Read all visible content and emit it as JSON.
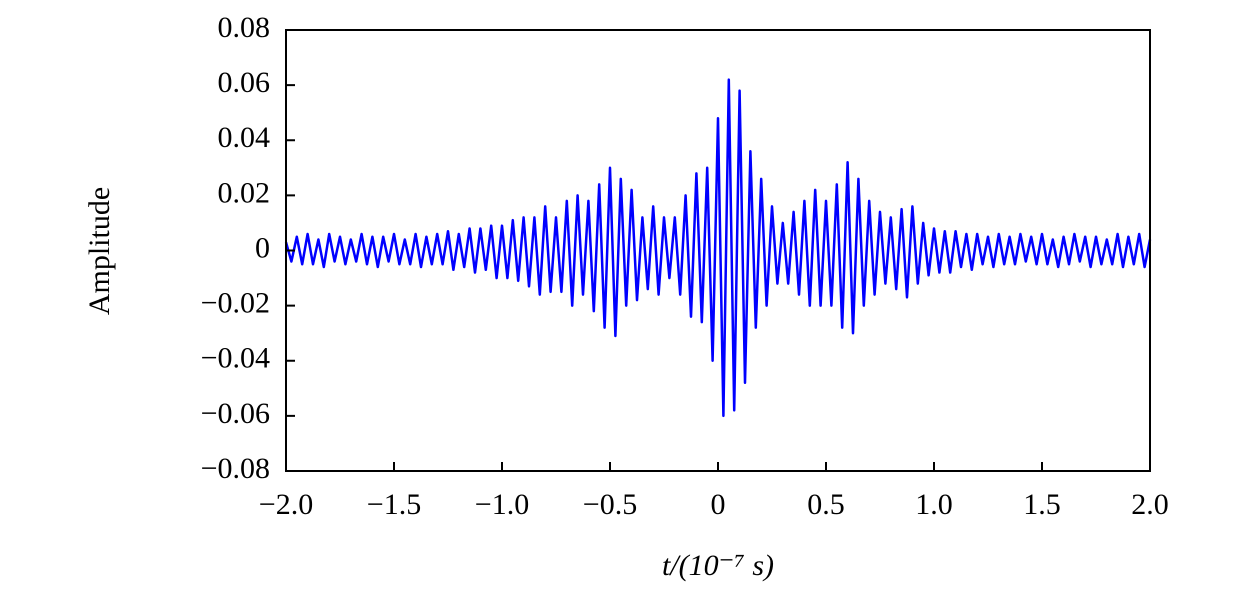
{
  "chart_data": {
    "type": "line",
    "xlabel": "t/(10⁻⁷ s)",
    "ylabel": "Amplitude",
    "x": [
      -2,
      -1.975,
      -1.95,
      -1.925,
      -1.9,
      -1.875,
      -1.85,
      -1.825,
      -1.8,
      -1.775,
      -1.75,
      -1.725,
      -1.7,
      -1.675,
      -1.65,
      -1.625,
      -1.6,
      -1.575,
      -1.55,
      -1.525,
      -1.5,
      -1.475,
      -1.45,
      -1.425,
      -1.4,
      -1.375,
      -1.35,
      -1.325,
      -1.3,
      -1.275,
      -1.25,
      -1.225,
      -1.2,
      -1.175,
      -1.15,
      -1.125,
      -1.1,
      -1.075,
      -1.05,
      -1.025,
      -1,
      -0.975,
      -0.95,
      -0.925,
      -0.9,
      -0.875,
      -0.85,
      -0.825,
      -0.8,
      -0.775,
      -0.75,
      -0.725,
      -0.7,
      -0.675,
      -0.65,
      -0.625,
      -0.6,
      -0.575,
      -0.55,
      -0.525,
      -0.5,
      -0.475,
      -0.45,
      -0.425,
      -0.4,
      -0.375,
      -0.35,
      -0.325,
      -0.3,
      -0.275,
      -0.25,
      -0.225,
      -0.2,
      -0.175,
      -0.15,
      -0.125,
      -0.1,
      -0.075,
      -0.05,
      -0.025,
      0,
      0.025,
      0.05,
      0.075,
      0.1,
      0.125,
      0.15,
      0.175,
      0.2,
      0.225,
      0.25,
      0.275,
      0.3,
      0.325,
      0.35,
      0.375,
      0.4,
      0.425,
      0.45,
      0.475,
      0.5,
      0.525,
      0.55,
      0.575,
      0.6,
      0.625,
      0.65,
      0.675,
      0.7,
      0.725,
      0.75,
      0.775,
      0.8,
      0.825,
      0.85,
      0.875,
      0.9,
      0.925,
      0.95,
      0.975,
      1,
      1.025,
      1.05,
      1.075,
      1.1,
      1.125,
      1.15,
      1.175,
      1.2,
      1.225,
      1.25,
      1.275,
      1.3,
      1.325,
      1.35,
      1.375,
      1.4,
      1.425,
      1.45,
      1.475,
      1.5,
      1.525,
      1.55,
      1.575,
      1.6,
      1.625,
      1.65,
      1.675,
      1.7,
      1.725,
      1.75,
      1.775,
      1.8,
      1.825,
      1.85,
      1.875,
      1.9,
      1.925,
      1.95,
      1.975,
      2
    ],
    "series": [
      {
        "color": "#0000ff",
        "values": [
          0.003,
          -0.004,
          0.005,
          -0.005,
          0.006,
          -0.005,
          0.004,
          -0.006,
          0.006,
          -0.004,
          0.005,
          -0.005,
          0.004,
          -0.004,
          0.006,
          -0.005,
          0.005,
          -0.006,
          0.005,
          -0.004,
          0.006,
          -0.005,
          0.004,
          -0.005,
          0.006,
          -0.006,
          0.005,
          -0.005,
          0.006,
          -0.005,
          0.007,
          -0.007,
          0.006,
          -0.006,
          0.008,
          -0.008,
          0.008,
          -0.007,
          0.009,
          -0.01,
          0.009,
          -0.01,
          0.011,
          -0.011,
          0.012,
          -0.013,
          0.012,
          -0.016,
          0.016,
          -0.015,
          0.012,
          -0.015,
          0.018,
          -0.02,
          0.02,
          -0.016,
          0.018,
          -0.022,
          0.024,
          -0.028,
          0.03,
          -0.031,
          0.026,
          -0.02,
          0.022,
          -0.018,
          0.012,
          -0.014,
          0.016,
          -0.016,
          0.012,
          -0.01,
          0.012,
          -0.016,
          0.02,
          -0.024,
          0.028,
          -0.026,
          0.03,
          -0.04,
          0.048,
          -0.06,
          0.062,
          -0.058,
          0.058,
          -0.048,
          0.036,
          -0.028,
          0.026,
          -0.02,
          0.016,
          -0.012,
          0.01,
          -0.012,
          0.014,
          -0.016,
          0.018,
          -0.02,
          0.022,
          -0.02,
          0.018,
          -0.02,
          0.024,
          -0.028,
          0.032,
          -0.03,
          0.026,
          -0.02,
          0.018,
          -0.016,
          0.014,
          -0.012,
          0.012,
          -0.014,
          0.015,
          -0.017,
          0.016,
          -0.012,
          0.01,
          -0.009,
          0.008,
          -0.008,
          0.007,
          -0.008,
          0.007,
          -0.006,
          0.006,
          -0.007,
          0.006,
          -0.005,
          0.005,
          -0.006,
          0.006,
          -0.005,
          0.005,
          -0.005,
          0.006,
          -0.004,
          0.005,
          -0.005,
          0.006,
          -0.005,
          0.004,
          -0.006,
          0.005,
          -0.005,
          0.006,
          -0.004,
          0.005,
          -0.006,
          0.005,
          -0.005,
          0.004,
          -0.005,
          0.006,
          -0.006,
          0.005,
          -0.005,
          0.006,
          -0.006,
          0.004
        ]
      }
    ],
    "xlim": [
      -2,
      2
    ],
    "xticks": [
      {
        "value": -2,
        "label": "−2.0"
      },
      {
        "value": -1.5,
        "label": "−1.5"
      },
      {
        "value": -1,
        "label": "−1.0"
      },
      {
        "value": -0.5,
        "label": "−0.5"
      },
      0,
      0.5,
      {
        "value": 1,
        "label": "1.0"
      },
      1.5,
      {
        "value": 2,
        "label": "2.0"
      }
    ],
    "ylim": [
      -0.08,
      0.08
    ],
    "yticks": [
      {
        "value": -0.08,
        "label": "−0.08"
      },
      {
        "value": -0.06,
        "label": "−0.06"
      },
      {
        "value": -0.04,
        "label": "−0.04"
      },
      {
        "value": -0.02,
        "label": "−0.02"
      },
      0,
      0.02,
      0.04,
      0.06,
      0.08
    ],
    "grid": false
  }
}
